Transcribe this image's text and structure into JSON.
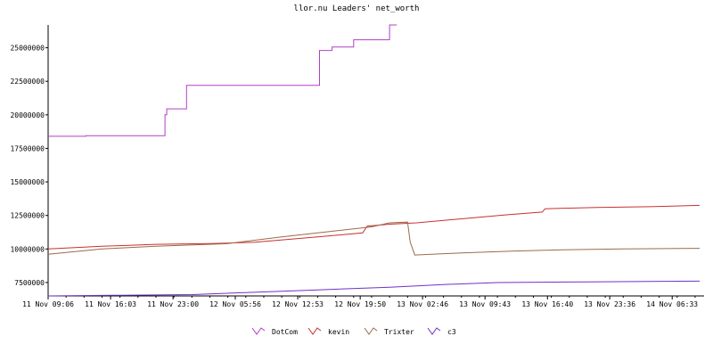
{
  "chart_data": {
    "type": "line",
    "title": "llor.nu Leaders' net_worth",
    "x_unit": "hours",
    "x_ticks": [
      {
        "label": "11 Nov 09:06",
        "x": 0
      },
      {
        "label": "11 Nov 16:03",
        "x": 6.95
      },
      {
        "label": "11 Nov 23:00",
        "x": 13.9
      },
      {
        "label": "12 Nov 05:56",
        "x": 20.83
      },
      {
        "label": "12 Nov 12:53",
        "x": 27.78
      },
      {
        "label": "12 Nov 19:50",
        "x": 34.73
      },
      {
        "label": "13 Nov 02:46",
        "x": 41.67
      },
      {
        "label": "13 Nov 09:43",
        "x": 48.62
      },
      {
        "label": "13 Nov 16:40",
        "x": 55.57
      },
      {
        "label": "13 Nov 23:36",
        "x": 62.5
      },
      {
        "label": "14 Nov 06:33",
        "x": 69.45
      }
    ],
    "xlim": [
      0,
      73
    ],
    "ylim": [
      6500000,
      26700000
    ],
    "y_ticks": [
      7500000,
      10000000,
      12500000,
      15000000,
      17500000,
      20000000,
      22500000,
      25000000
    ],
    "y_tick_labels": [
      "7500000",
      "10000000",
      "12500000",
      "15000000",
      "17500000",
      "20000000",
      "22500000",
      "25000000"
    ],
    "legend_position": "bottom",
    "series": [
      {
        "name": "DotCom",
        "color": "#b040c8",
        "step": true,
        "points": [
          [
            0,
            18400000
          ],
          [
            4,
            18400000
          ],
          [
            4.2,
            18450000
          ],
          [
            12.8,
            18450000
          ],
          [
            13.0,
            20000000
          ],
          [
            13.2,
            20450000
          ],
          [
            15.2,
            20450000
          ],
          [
            15.4,
            22200000
          ],
          [
            30.0,
            22200000
          ],
          [
            30.2,
            24800000
          ],
          [
            31.4,
            24800000
          ],
          [
            31.6,
            25050000
          ],
          [
            33.8,
            25050000
          ],
          [
            34.0,
            25600000
          ],
          [
            37.8,
            25600000
          ],
          [
            38.0,
            26700000
          ],
          [
            38.8,
            26700000
          ]
        ]
      },
      {
        "name": "kevin",
        "color": "#c83030",
        "points": [
          [
            0,
            10000000
          ],
          [
            6,
            10200000
          ],
          [
            12,
            10350000
          ],
          [
            18,
            10400000
          ],
          [
            23,
            10500000
          ],
          [
            30,
            10900000
          ],
          [
            35,
            11200000
          ],
          [
            35.5,
            11700000
          ],
          [
            38,
            11850000
          ],
          [
            41,
            11950000
          ],
          [
            46,
            12250000
          ],
          [
            51,
            12550000
          ],
          [
            55,
            12750000
          ],
          [
            55.3,
            13000000
          ],
          [
            61,
            13100000
          ],
          [
            67,
            13150000
          ],
          [
            72.5,
            13250000
          ]
        ]
      },
      {
        "name": "Trixter",
        "color": "#9a6a4a",
        "points": [
          [
            0,
            9600000
          ],
          [
            6,
            10000000
          ],
          [
            12,
            10200000
          ],
          [
            20,
            10400000
          ],
          [
            26,
            10900000
          ],
          [
            30,
            11200000
          ],
          [
            36,
            11650000
          ],
          [
            38,
            11950000
          ],
          [
            40,
            12000000
          ],
          [
            40.3,
            10500000
          ],
          [
            40.8,
            9550000
          ],
          [
            46,
            9700000
          ],
          [
            52,
            9850000
          ],
          [
            58,
            9950000
          ],
          [
            64,
            10000000
          ],
          [
            72.5,
            10050000
          ]
        ]
      },
      {
        "name": "c3",
        "color": "#7030c8",
        "points": [
          [
            0,
            6500000
          ],
          [
            8,
            6550000
          ],
          [
            16,
            6600000
          ],
          [
            24,
            6800000
          ],
          [
            30,
            6950000
          ],
          [
            38,
            7150000
          ],
          [
            44,
            7350000
          ],
          [
            50,
            7500000
          ],
          [
            60,
            7550000
          ],
          [
            72.5,
            7600000
          ]
        ]
      }
    ]
  }
}
